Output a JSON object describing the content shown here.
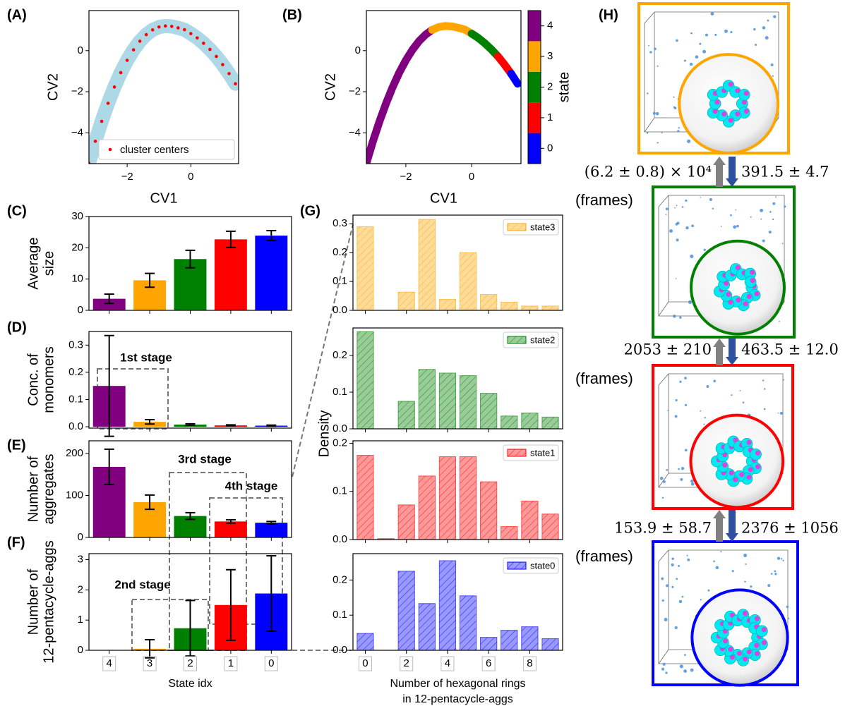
{
  "chart_data": [
    {
      "type": "scatter",
      "label": "(A)",
      "xlabel": "CV1",
      "ylabel": "CV2",
      "xlim": [
        -3.2,
        1.5
      ],
      "ylim": [
        -5.5,
        1.95
      ],
      "xticks": [
        {
          "value": -2,
          "label": "−2"
        },
        0
      ],
      "yticks": [
        {
          "value": -4,
          "label": "−4"
        },
        {
          "value": -2,
          "label": "−2"
        },
        0
      ],
      "series": [
        {
          "color": "#add8e6",
          "x": [
            -3.2,
            -3.0,
            -2.8,
            -2.6,
            -2.4,
            -2.2,
            -2.0,
            -1.8,
            -1.6,
            -1.4,
            -1.2,
            -1.0,
            -0.8,
            -0.6,
            -0.4,
            -0.2,
            0,
            0.2,
            0.4,
            0.6,
            0.8,
            1.0,
            1.2,
            1.4
          ],
          "values": [
            -5.48,
            -4.41,
            -3.44,
            -2.56,
            -1.77,
            -1.07,
            -0.47,
            0.04,
            0.46,
            0.78,
            1.01,
            1.15,
            1.2,
            1.18,
            1.11,
            1.02,
            0.83,
            0.62,
            0.36,
            0.06,
            -0.28,
            -0.68,
            -1.12,
            -1.61
          ]
        },
        {
          "name": "cluster centers",
          "color": "#ff0000",
          "x": [
            -3.2,
            -3.0,
            -2.8,
            -2.6,
            -2.4,
            -2.2,
            -2.0,
            -1.8,
            -1.6,
            -1.4,
            -1.2,
            -1.0,
            -0.8,
            -0.6,
            -0.4,
            -0.2,
            0,
            0.2,
            0.4,
            0.6,
            0.8,
            1.0,
            1.2,
            1.4
          ],
          "values": [
            -5.48,
            -4.41,
            -3.44,
            -2.56,
            -1.77,
            -1.07,
            -0.47,
            0.04,
            0.46,
            0.78,
            1.01,
            1.15,
            1.2,
            1.18,
            1.11,
            1.02,
            0.83,
            0.62,
            0.36,
            0.06,
            -0.28,
            -0.68,
            -1.12,
            -1.61
          ]
        }
      ]
    },
    {
      "type": "scatter",
      "label": "(B)",
      "xlabel": "CV1",
      "ylabel": "CV2",
      "xlim": [
        -3.2,
        1.5
      ],
      "ylim": [
        -5.5,
        1.95
      ],
      "xticks": [
        {
          "value": -2,
          "label": "−2"
        },
        0
      ],
      "yticks": [
        {
          "value": -4,
          "label": "−4"
        },
        {
          "value": -2,
          "label": "−2"
        },
        0
      ],
      "colorbar": {
        "label": "state",
        "lim": [
          -0.5,
          4.5
        ],
        "ticks": [
          0,
          1,
          2,
          3,
          4
        ],
        "colors": [
          "#0000ff",
          "#ff0000",
          "#008000",
          "#ffa500",
          "#800080"
        ]
      },
      "series": [
        {
          "color": "#800080",
          "x": [
            -3.2,
            -3.0,
            -2.8,
            -2.6,
            -2.4,
            -2.2,
            -2.0,
            -1.8,
            -1.6,
            -1.4,
            -1.2
          ],
          "values": [
            -5.48,
            -4.41,
            -3.44,
            -2.56,
            -1.77,
            -1.07,
            -0.47,
            0.04,
            0.46,
            0.78,
            1.01
          ]
        },
        {
          "color": "#ffa500",
          "x": [
            -1.2,
            -1.0,
            -0.8,
            -0.6,
            -0.4,
            -0.2,
            0
          ],
          "values": [
            1.01,
            1.15,
            1.2,
            1.18,
            1.11,
            1.02,
            0.83
          ]
        },
        {
          "color": "#008000",
          "x": [
            0,
            0.2,
            0.4,
            0.6,
            0.8
          ],
          "values": [
            0.83,
            0.62,
            0.36,
            0.06,
            -0.28
          ]
        },
        {
          "color": "#ff0000",
          "x": [
            0.8,
            1.0,
            1.2
          ],
          "values": [
            -0.28,
            -0.68,
            -1.12
          ]
        },
        {
          "color": "#0000ff",
          "x": [
            1.2,
            1.4
          ],
          "values": [
            -1.12,
            -1.61
          ]
        }
      ]
    },
    {
      "type": "bar",
      "label": "(C)",
      "ylabel": [
        "Average",
        "size"
      ],
      "ylim": [
        0,
        30
      ],
      "yticks": [
        0,
        10,
        20,
        30
      ],
      "values": [
        3.7,
        9.6,
        16.4,
        22.7,
        23.9
      ],
      "errors": [
        1.5,
        2.2,
        2.8,
        2.6,
        1.6
      ],
      "colors": [
        "#800080",
        "#ffa500",
        "#008000",
        "#ff0000",
        "#0000ff"
      ]
    },
    {
      "type": "bar",
      "label": "(D)",
      "ylabel": [
        "Conc. of",
        "monomers"
      ],
      "ylim": [
        -0.005,
        0.35
      ],
      "yticks": [
        {
          "value": 0,
          "label": "0.0"
        },
        0.1,
        0.2,
        0.3
      ],
      "values": [
        0.15,
        0.018,
        0.008,
        0.005,
        0.004
      ],
      "errors": [
        0.185,
        0.008,
        0.003,
        0.002,
        0.002
      ],
      "colors": [
        "#800080",
        "#ffa500",
        "#008000",
        "#ff0000",
        "#0000ff"
      ],
      "annotations": [
        "1st stage"
      ]
    },
    {
      "type": "bar",
      "label": "(E)",
      "ylabel": [
        "Number of",
        "aggregates"
      ],
      "ylim": [
        0,
        230
      ],
      "yticks": [
        0,
        100,
        200
      ],
      "values": [
        168,
        84,
        51,
        38,
        35
      ],
      "errors": [
        42,
        17,
        8,
        4,
        3
      ],
      "colors": [
        "#800080",
        "#ffa500",
        "#008000",
        "#ff0000",
        "#0000ff"
      ],
      "annotations": [
        "3rd stage",
        "4th stage"
      ]
    },
    {
      "type": "bar",
      "label": "(F)",
      "ylabel": [
        "Number of",
        "12-pentacycle-aggs"
      ],
      "xlabel": "State idx",
      "ylim": [
        0,
        3.2
      ],
      "yticks": [
        0,
        1,
        2,
        3
      ],
      "categories": [
        "4",
        "3",
        "2",
        "1",
        "0"
      ],
      "values": [
        0,
        0.05,
        0.73,
        1.5,
        1.88
      ],
      "errors": [
        0,
        0.3,
        0.92,
        1.17,
        1.25
      ],
      "colors": [
        "#800080",
        "#ffa500",
        "#008000",
        "#ff0000",
        "#0000ff"
      ],
      "annotations": [
        "2nd stage"
      ]
    },
    {
      "type": "histogram-stack",
      "label": "(G)",
      "ylabel": "Density",
      "xlabel": [
        "Number of hexagonal rings",
        "in 12-pentacycle-aggs"
      ],
      "x": [
        0,
        1,
        2,
        3,
        4,
        5,
        6,
        7,
        8,
        9
      ],
      "xlim": [
        -0.6,
        9.6
      ],
      "xticks": [
        0,
        2,
        4,
        6,
        8
      ],
      "panels": [
        {
          "ylim": [
            0,
            0.33
          ],
          "yticks": [
            {
              "value": 0,
              "label": "0.0"
            },
            0.1,
            0.2,
            0.3
          ],
          "series": [
            {
              "name": "state3",
              "color": "#ffa500",
              "values": [
                0.29,
                0,
                0.063,
                0.315,
                0.038,
                0.2,
                0.055,
                0.028,
                0.015,
                0.015
              ]
            }
          ]
        },
        {
          "ylim": [
            0,
            0.275
          ],
          "yticks": [
            {
              "value": 0,
              "label": "0.0"
            },
            0.1,
            0.2
          ],
          "series": [
            {
              "name": "state2",
              "color": "#008000",
              "values": [
                0.265,
                0,
                0.075,
                0.162,
                0.152,
                0.145,
                0.097,
                0.035,
                0.043,
                0.032
              ]
            }
          ]
        },
        {
          "ylim": [
            0,
            0.205
          ],
          "yticks": [
            {
              "value": 0,
              "label": "0.0"
            },
            0.1,
            0.2
          ],
          "series": [
            {
              "name": "state1",
              "color": "#ff0000",
              "values": [
                0.175,
                0.002,
                0.072,
                0.132,
                0.172,
                0.172,
                0.12,
                0.027,
                0.08,
                0.053
              ]
            }
          ]
        },
        {
          "ylim": [
            0,
            0.275
          ],
          "yticks": [
            {
              "value": 0,
              "label": "0.0"
            },
            0.1,
            0.2
          ],
          "series": [
            {
              "name": "state0",
              "color": "#0000ff",
              "values": [
                0.048,
                0,
                0.225,
                0.133,
                0.255,
                0.155,
                0.037,
                0.057,
                0.067,
                0.033
              ]
            }
          ]
        }
      ]
    }
  ],
  "panel_h": {
    "label": "(H)",
    "transitions": [
      {
        "up": "(6.2 ± 0.8) × 10⁴",
        "down": "391.5 ± 4.7",
        "unit": "(frames)"
      },
      {
        "up": "2053 ± 210",
        "down": "463.5 ± 12.0",
        "unit": "(frames)"
      },
      {
        "up": "153.9 ± 58.7",
        "down": "2376 ± 1056",
        "unit": "(frames)"
      }
    ]
  }
}
